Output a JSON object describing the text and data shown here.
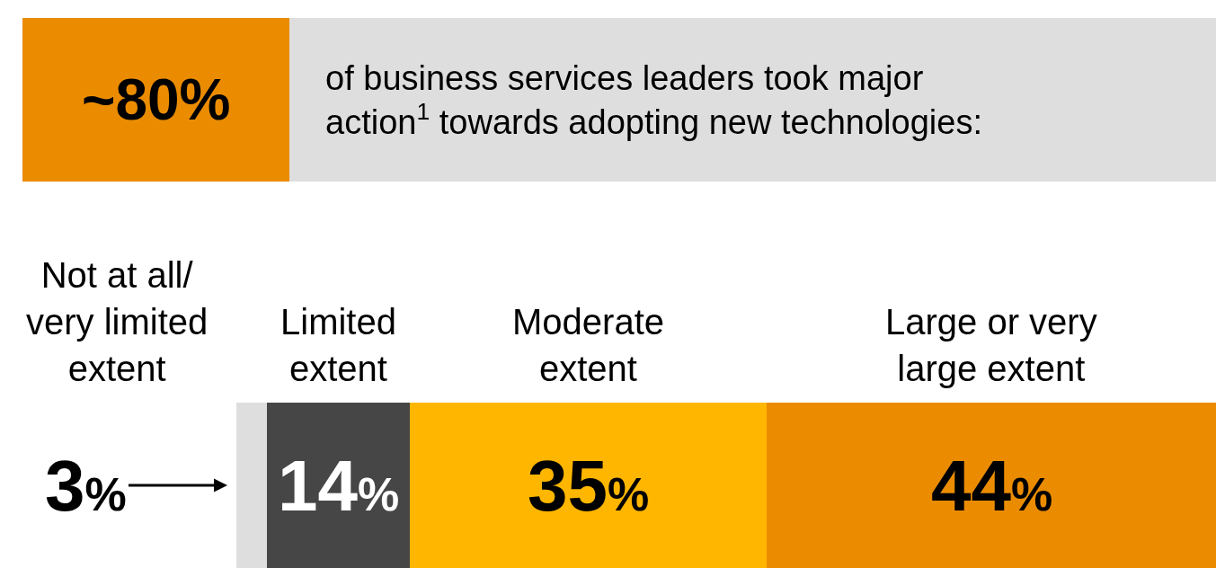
{
  "chart_data": {
    "type": "bar",
    "orientation": "horizontal",
    "stacked": true,
    "title": "~80%",
    "subtitle": "of business services leaders took major action$^{1}$ towards adopting new technologies:",
    "categories": [
      null
    ],
    "legend": false,
    "tick_labels": false,
    "series": [
      {
        "name": "Not at all/ very limited extent",
        "color": "#dedede",
        "values": [
          3
        ],
        "value_labels": [
          "3%"
        ]
      },
      {
        "name": "Limited extent",
        "color": "#464646",
        "values": [
          14
        ],
        "value_labels": [
          "14%"
        ]
      },
      {
        "name": "Moderate extent",
        "color": "#ffb600",
        "values": [
          35
        ],
        "value_labels": [
          "35%"
        ]
      },
      {
        "name": "Large or very large extent",
        "color": "#eb8c00",
        "values": [
          44
        ],
        "value_labels": [
          "44%"
        ]
      }
    ]
  }
}
